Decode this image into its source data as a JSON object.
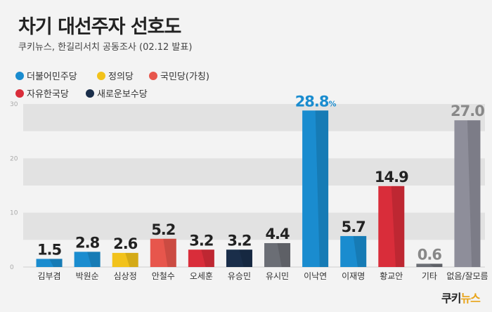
{
  "title": "차기 대선주자 선호도",
  "subtitle": "쿠키뉴스, 한길리서치 공동조사 (02.12 발표)",
  "legend": [
    {
      "name": "더불어민주당",
      "color": "#1a8ccf"
    },
    {
      "name": "정의당",
      "color": "#f2c21b"
    },
    {
      "name": "국민당(가칭)",
      "color": "#e7564c"
    },
    {
      "name": "자유한국당",
      "color": "#d92d3a"
    },
    {
      "name": "새로운보수당",
      "color": "#1a2e4a"
    }
  ],
  "logo": {
    "part1": "쿠키",
    "part2": "뉴스"
  },
  "chart_data": {
    "type": "bar",
    "categories": [
      "김부겸",
      "박원순",
      "심상정",
      "안철수",
      "오세훈",
      "유승민",
      "유시민",
      "이낙연",
      "이재명",
      "황교안",
      "기타",
      "없음/잘모름"
    ],
    "values": [
      1.5,
      2.8,
      2.6,
      5.2,
      3.2,
      3.2,
      4.4,
      28.8,
      5.7,
      14.9,
      0.6,
      27.0
    ],
    "value_labels": [
      "1.5",
      "2.8",
      "2.6",
      "5.2",
      "3.2",
      "3.2",
      "4.4",
      "28.8",
      "5.7",
      "14.9",
      "0.6",
      "27.0"
    ],
    "highlight_suffix": "%",
    "colors": [
      "#1a8ccf",
      "#1a8ccf",
      "#f2c21b",
      "#e7564c",
      "#d92d3a",
      "#1a2e4a",
      "#6b6e75",
      "#1a8ccf",
      "#1a8ccf",
      "#d92d3a",
      "#6b6e75",
      "#8e8e9a"
    ],
    "label_colors": [
      "#222222",
      "#222222",
      "#222222",
      "#222222",
      "#222222",
      "#222222",
      "#222222",
      "#1a8ccf",
      "#222222",
      "#222222",
      "#888888",
      "#888888"
    ],
    "yticks": [
      0,
      10,
      20,
      30
    ],
    "ylim": [
      0,
      30
    ],
    "grid": true
  }
}
